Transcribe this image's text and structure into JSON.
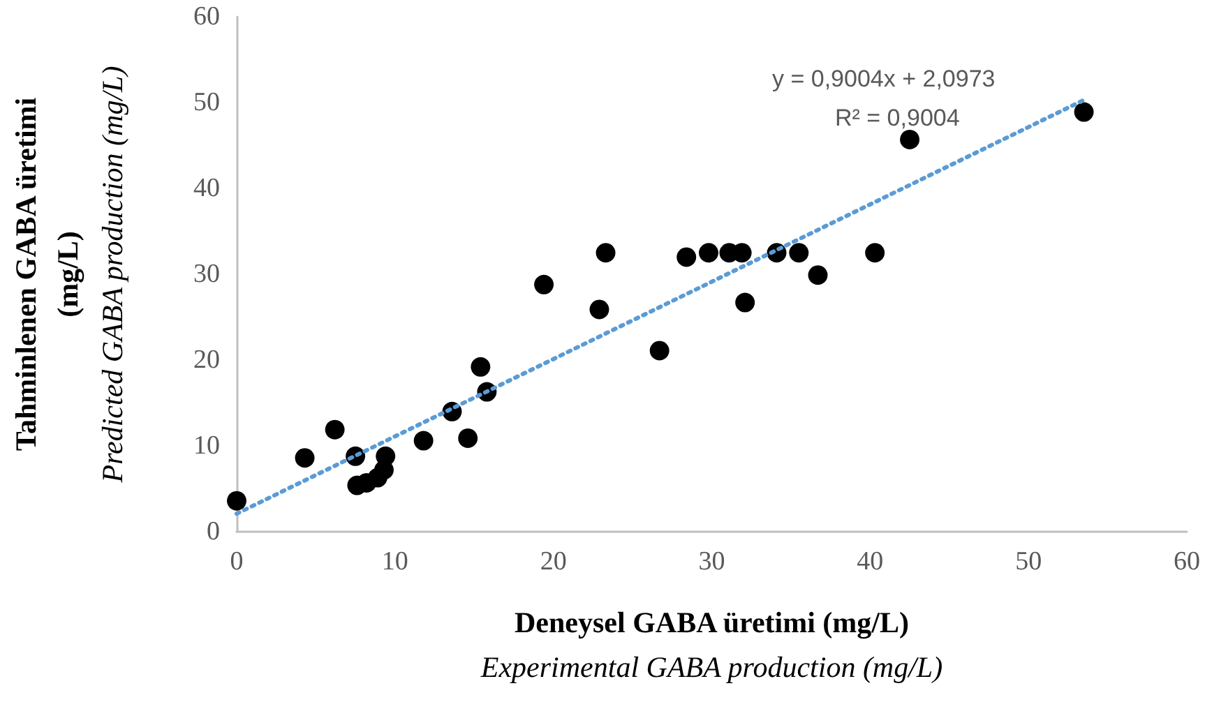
{
  "chart_data": {
    "type": "scatter",
    "xlabel": "Deneysel GABA üretimi (mg/L)\nExperimental GABA production (mg/L)",
    "ylabel": "Tahminlenen GABA üretimi\n(mg/L)\nPredicted GABA production (mg/L)",
    "annotations": [
      "y = 0,9004x + 2,0973",
      "R² = 0,9004"
    ],
    "xlim": [
      0,
      60
    ],
    "xticks": [
      0,
      10,
      20,
      30,
      40,
      50,
      60
    ],
    "ylim": [
      0,
      60
    ],
    "yticks": [
      0,
      10,
      20,
      30,
      40,
      50,
      60
    ],
    "grid": false,
    "marker": "circle",
    "series": [
      {
        "color": "#000000",
        "x": [
          0,
          4.3,
          6.2,
          7.5,
          7.6,
          8.2,
          8.9,
          9.3,
          9.4,
          11.8,
          13.6,
          14.6,
          15.4,
          15.8,
          19.4,
          22.9,
          23.3,
          26.7,
          28.4,
          29.8,
          31.1,
          31.9,
          32.1,
          34.1,
          35.5,
          36.7,
          40.3,
          42.5,
          53.5
        ],
        "values": [
          3.6,
          8.6,
          11.9,
          8.8,
          5.4,
          5.7,
          6.3,
          7.2,
          8.8,
          10.6,
          14.0,
          10.9,
          19.2,
          16.3,
          28.8,
          25.9,
          32.5,
          21.1,
          32.0,
          32.5,
          32.5,
          32.5,
          26.7,
          32.5,
          32.5,
          29.9,
          32.5,
          45.7,
          48.9
        ]
      },
      {
        "type": "line",
        "color": "#5b9bd5",
        "line_style": "dotted",
        "marker": "none",
        "x": [
          0,
          53.5
        ],
        "values": [
          2.1,
          50.3
        ]
      }
    ]
  }
}
